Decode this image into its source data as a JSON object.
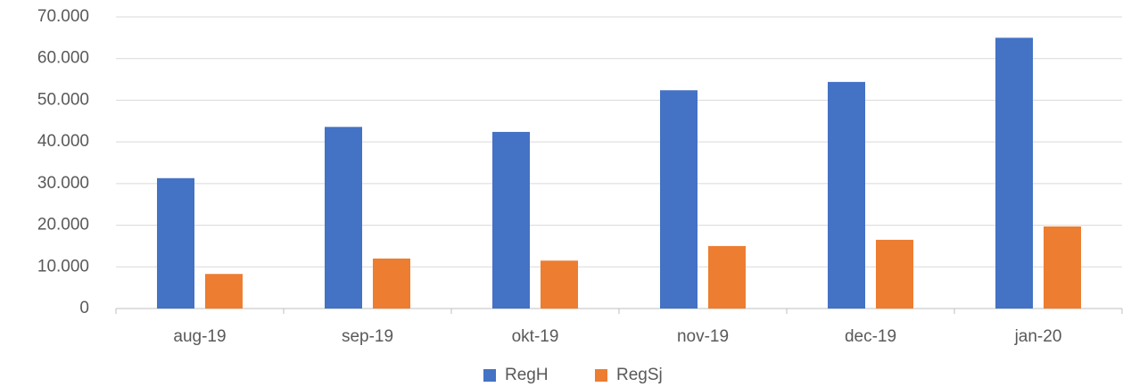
{
  "chart_data": {
    "type": "bar",
    "categories": [
      "aug-19",
      "sep-19",
      "okt-19",
      "nov-19",
      "dec-19",
      "jan-20"
    ],
    "series": [
      {
        "name": "RegH",
        "color": "#4472c4",
        "values": [
          31300,
          43600,
          42400,
          52400,
          54400,
          65000
        ]
      },
      {
        "name": "RegSj",
        "color": "#ed7d31",
        "values": [
          8300,
          12000,
          11500,
          15000,
          16500,
          19700
        ]
      }
    ],
    "ylim": [
      0,
      70000
    ],
    "yticks": [
      0,
      {
        "value": 10000,
        "label": "10.000"
      },
      {
        "value": 20000,
        "label": "20.000"
      },
      {
        "value": 30000,
        "label": "30.000"
      },
      {
        "value": 40000,
        "label": "40.000"
      },
      {
        "value": 50000,
        "label": "50.000"
      },
      {
        "value": 60000,
        "label": "60.000"
      },
      {
        "value": 70000,
        "label": "70.000"
      }
    ],
    "grid": true,
    "legend": "bottom"
  }
}
